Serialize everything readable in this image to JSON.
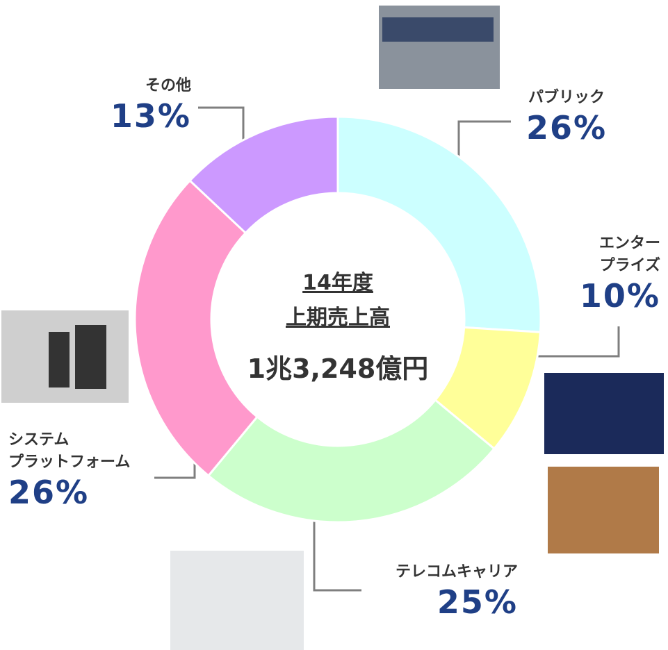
{
  "chart_data": {
    "type": "donut",
    "title": "14年度",
    "subtitle": "上期売上高",
    "center_value": "1兆3,248億円",
    "categories": [
      "パブリック",
      "エンター\nプライズ",
      "テレコムキャリア",
      "システム\nプラットフォーム",
      "その他"
    ],
    "values": [
      26,
      10,
      25,
      26,
      13
    ],
    "value_labels": [
      "26%",
      "10%",
      "25%",
      "26%",
      "13%"
    ],
    "colors": [
      "#ccffff",
      "#ffff99",
      "#ccffcc",
      "#ff99cc",
      "#cc99ff"
    ]
  }
}
